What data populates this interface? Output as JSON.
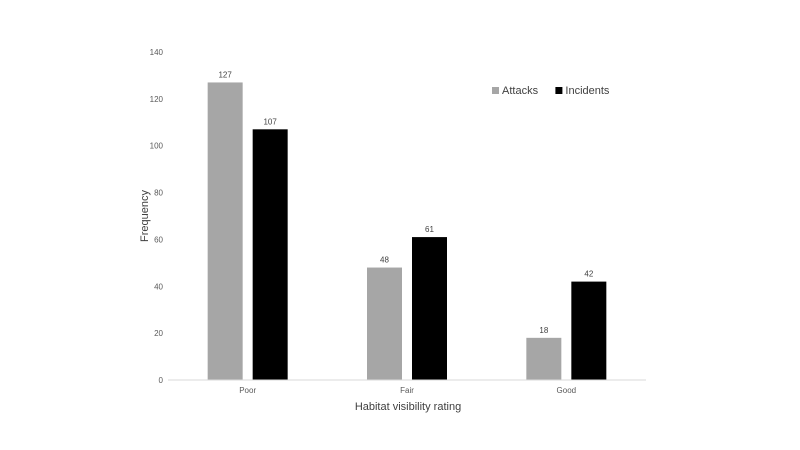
{
  "chart_data": {
    "type": "bar",
    "categories": [
      "Poor",
      "Fair",
      "Good"
    ],
    "series": [
      {
        "name": "Attacks",
        "values": [
          127,
          48,
          18
        ],
        "color": "#a6a6a6"
      },
      {
        "name": "Incidents",
        "values": [
          107,
          61,
          42
        ],
        "color": "#000000"
      }
    ],
    "xlabel": "Habitat visibility rating",
    "ylabel": "Frequency",
    "ylim": [
      0,
      140
    ],
    "yticks": [
      0,
      20,
      40,
      60,
      80,
      100,
      120,
      140
    ],
    "grid": false,
    "legend_position": "top-right",
    "data_labels": true
  }
}
